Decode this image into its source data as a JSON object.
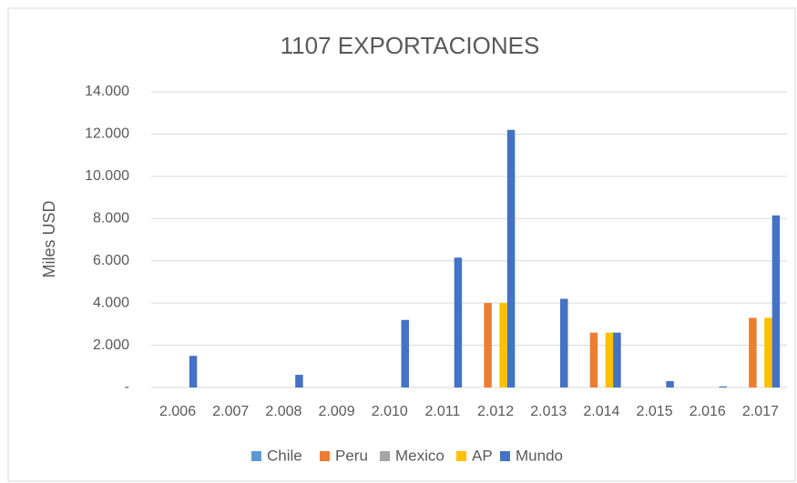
{
  "chart_data": {
    "type": "bar",
    "title": "1107 EXPORTACIONES",
    "y_label": "Miles USD",
    "categories": [
      "2.006",
      "2.007",
      "2.008",
      "2.009",
      "2.010",
      "2.011",
      "2.012",
      "2.013",
      "2.014",
      "2.015",
      "2.016",
      "2.017"
    ],
    "series": [
      {
        "name": "Chile",
        "color": "#5b9bd5",
        "values": [
          0,
          0,
          0,
          0,
          0,
          0,
          0,
          0,
          0,
          0,
          0,
          0
        ]
      },
      {
        "name": "Peru",
        "color": "#ed7d31",
        "values": [
          0,
          0,
          0,
          0,
          0,
          0,
          4000,
          0,
          2600,
          0,
          0,
          3300
        ]
      },
      {
        "name": "Mexico",
        "color": "#a5a5a5",
        "values": [
          0,
          0,
          0,
          0,
          0,
          0,
          0,
          0,
          0,
          0,
          0,
          0
        ]
      },
      {
        "name": "AP",
        "color": "#ffc000",
        "values": [
          0,
          0,
          0,
          0,
          0,
          0,
          4000,
          0,
          2600,
          0,
          0,
          3300
        ]
      },
      {
        "name": "Mundo",
        "color": "#4472c4",
        "values": [
          1500,
          0,
          600,
          0,
          3200,
          6150,
          12200,
          4200,
          2600,
          300,
          50,
          8150
        ]
      }
    ],
    "ylim": [
      0,
      14000
    ],
    "yticks": [
      {
        "value": 0,
        "label": "-"
      },
      {
        "value": 2000,
        "label": "2.000"
      },
      {
        "value": 4000,
        "label": "4.000"
      },
      {
        "value": 6000,
        "label": "6.000"
      },
      {
        "value": 8000,
        "label": "8.000"
      },
      {
        "value": 10000,
        "label": "10.000"
      },
      {
        "value": 12000,
        "label": "12.000"
      },
      {
        "value": 14000,
        "label": "14.000"
      }
    ],
    "grid": true,
    "legend": "bottom"
  }
}
